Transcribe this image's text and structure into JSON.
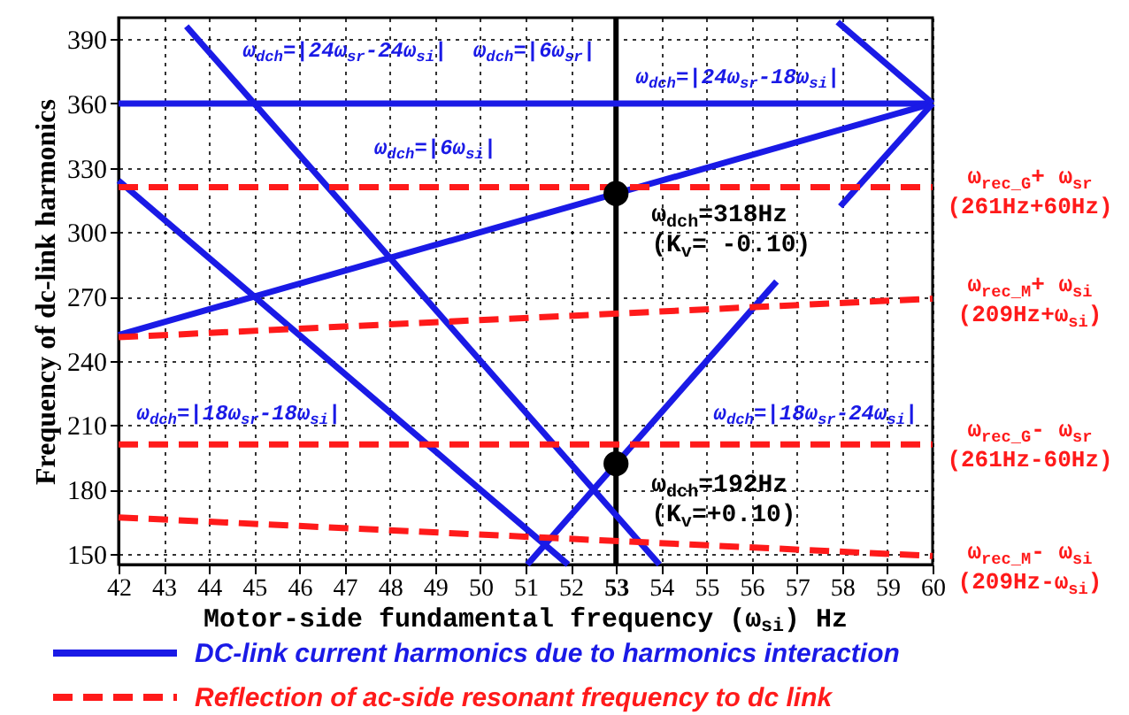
{
  "chart_data": {
    "type": "line",
    "xlabel": "Motor-side fundamental frequency (ω$_{si}$) Hz",
    "ylabel": "Frequency of dc-link harmonics",
    "xlim": [
      42,
      60
    ],
    "xticks": [
      42,
      43,
      44,
      45,
      46,
      47,
      48,
      49,
      50,
      51,
      52,
      53,
      54,
      55,
      56,
      57,
      58,
      59,
      60
    ],
    "ylim": [
      145,
      400
    ],
    "yticks": [
      150,
      180,
      210,
      240,
      270,
      300,
      330,
      360,
      390
    ],
    "grid": true,
    "legend": "bottom",
    "ref_lines": [
      {
        "axis": "x",
        "value": 53,
        "color": "#000000"
      }
    ],
    "series": [
      {
        "name": "DC-link current harmonics due to harmonics interaction",
        "color": "#1a1ae6",
        "line_style": "solid",
        "x": [
          42,
          60
        ],
        "values": [
          360,
          360
        ]
      },
      {
        "color": "#1a1ae6",
        "line_style": "solid",
        "x": [
          42,
          60
        ],
        "values": [
          252,
          360
        ]
      },
      {
        "color": "#1a1ae6",
        "line_style": "solid",
        "x": [
          43.5,
          53.96
        ],
        "values": [
          396,
          145
        ]
      },
      {
        "color": "#1a1ae6",
        "line_style": "solid",
        "x": [
          42,
          51.94
        ],
        "values": [
          324,
          145
        ]
      },
      {
        "color": "#1a1ae6",
        "line_style": "solid",
        "x": [
          51.04,
          56.55
        ],
        "values": [
          145,
          277
        ]
      },
      {
        "color": "#1a1ae6",
        "line_style": "solid",
        "x": [
          57.96,
          60
        ],
        "values": [
          312,
          360
        ]
      },
      {
        "color": "#1a1ae6",
        "line_style": "solid",
        "x": [
          57.9,
          60
        ],
        "values": [
          398,
          360
        ]
      },
      {
        "name": "Reflection of ac-side resonant frequency to dc link",
        "color": "#ff1a1a",
        "line_style": "dashed",
        "x": [
          42,
          60
        ],
        "values": [
          321,
          321
        ]
      },
      {
        "color": "#ff1a1a",
        "line_style": "dashed",
        "x": [
          42,
          60
        ],
        "values": [
          251,
          269
        ]
      },
      {
        "color": "#ff1a1a",
        "line_style": "dashed",
        "x": [
          42,
          60
        ],
        "values": [
          201,
          201
        ]
      },
      {
        "color": "#ff1a1a",
        "line_style": "dashed",
        "x": [
          42,
          60
        ],
        "values": [
          167,
          149
        ]
      },
      {
        "type": "scatter",
        "color": "#000000",
        "marker": "circle",
        "x": [
          53,
          53
        ],
        "values": [
          318,
          192
        ],
        "value_labels": [
          "ω$_{dch}$=318Hz\n(K$_{v}$= -0.10)",
          "ω$_{dch}$=192Hz\n(K$_{v}$=+0.10)"
        ]
      }
    ],
    "annotations": [
      "ω$_{dch}$=|24ω$_{sr}$-24ω$_{si}$|",
      "ω$_{dch}$=|6ω$_{sr}$|",
      "ω$_{dch}$=|24ω$_{sr}$-18ω$_{si}$|",
      "ω$_{dch}$=|6ω$_{si}$|",
      "ω$_{dch}$=|18ω$_{sr}$-18ω$_{si}$|",
      "ω$_{dch}$=|18ω$_{sr}$-24ω$_{si}$|",
      "ω$_{rec_G}$+ ω$_{sr}$\n(261Hz+60Hz)",
      "ω$_{rec_M}$+ ω$_{si}$\n(209Hz+ω$_{si}$)",
      "ω$_{rec_G}$- ω$_{sr}$\n(261Hz-60Hz)",
      "ω$_{rec_M}$- ω$_{si}$\n(209Hz-ω$_{si}$)"
    ]
  }
}
